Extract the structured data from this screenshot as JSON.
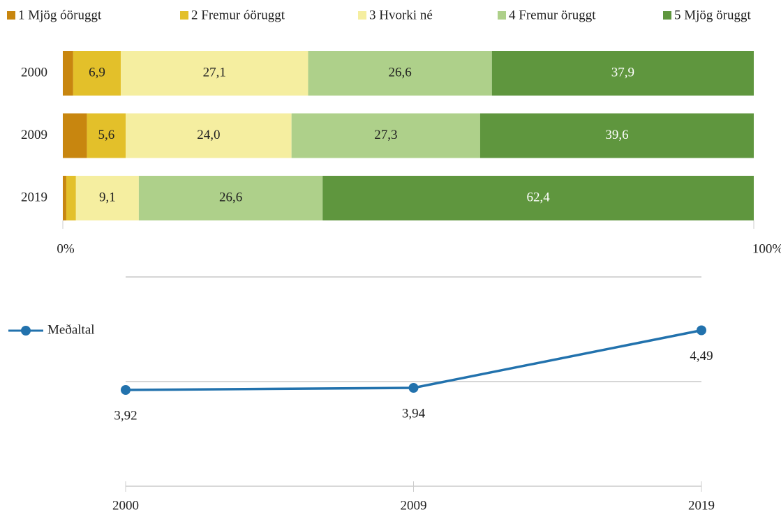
{
  "chart_data": [
    {
      "type": "stacked_barh",
      "categories": [
        "2000",
        "2009",
        "2019"
      ],
      "series": [
        {
          "name": "1 Mjög óöruggt",
          "color": "#c8860f",
          "values": [
            1.5,
            3.5,
            0.5
          ],
          "value_labels": [
            null,
            null,
            null
          ]
        },
        {
          "name": "2 Fremur óöruggt",
          "color": "#e3c02a",
          "values": [
            6.9,
            5.6,
            1.4
          ],
          "value_labels": [
            "6,9",
            "5,6",
            null
          ]
        },
        {
          "name": "3 Hvorki né",
          "color": "#f5eea0",
          "values": [
            27.1,
            24.0,
            9.1
          ],
          "value_labels": [
            "27,1",
            "24,0",
            "9,1"
          ]
        },
        {
          "name": "4 Fremur öruggt",
          "color": "#aed08a",
          "values": [
            26.6,
            27.3,
            26.6
          ],
          "value_labels": [
            "26,6",
            "27,3",
            "26,6"
          ]
        },
        {
          "name": "5 Mjög öruggt",
          "color": "#5f963e",
          "values": [
            37.9,
            39.6,
            62.4
          ],
          "value_labels": [
            "37,9",
            "39,6",
            "62,4"
          ]
        }
      ],
      "xlim": [
        0,
        100
      ],
      "xticks": [
        {
          "value": 0,
          "label": "0%"
        },
        {
          "value": 100,
          "label": "100%"
        }
      ],
      "legend": "top"
    },
    {
      "type": "line",
      "categories": [
        "2000",
        "2009",
        "2019"
      ],
      "series": [
        {
          "name": "Meðaltal",
          "color": "#2272ad",
          "values": [
            3.92,
            3.94,
            4.49
          ],
          "value_labels": [
            "3,92",
            "3,94",
            "4,49"
          ]
        }
      ],
      "ylim": [
        3,
        5
      ],
      "yticks": [
        3,
        4,
        5
      ],
      "grid": true,
      "legend": "left"
    }
  ]
}
